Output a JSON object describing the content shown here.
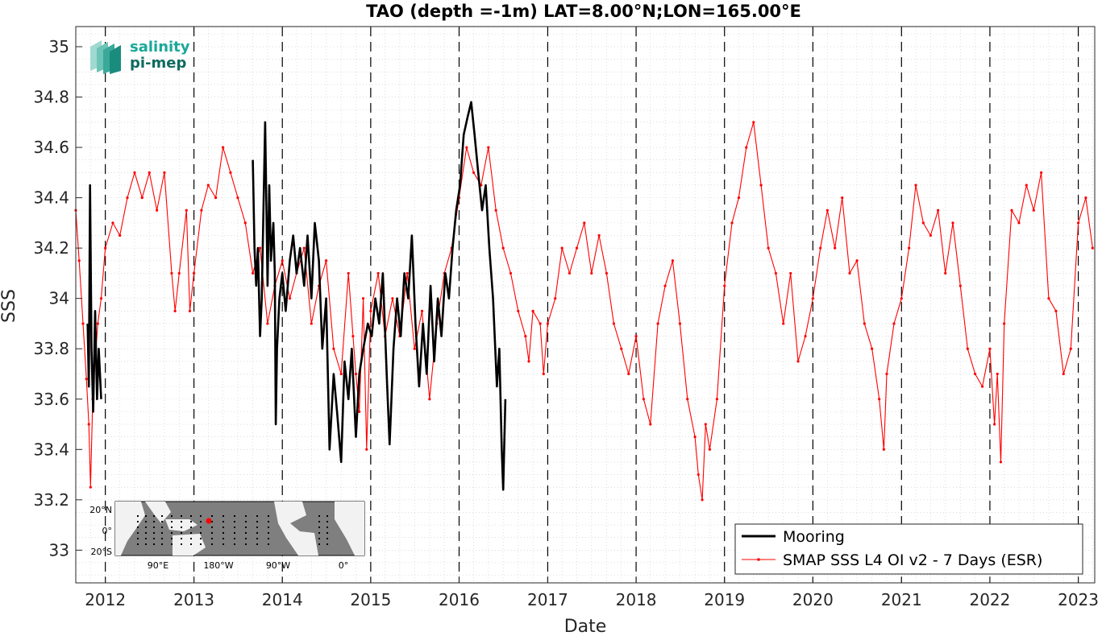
{
  "chart_data": {
    "type": "line",
    "title": "TAO (depth =-1m) LAT=8.00°N;LON=165.00°E",
    "xlabel": "Date",
    "ylabel": "SSS",
    "xlim": [
      "2011-09-01",
      "2023-03-10"
    ],
    "ylim": [
      32.87,
      35.08
    ],
    "y_ticks": [
      33,
      33.2,
      33.4,
      33.6,
      33.8,
      34,
      34.2,
      34.4,
      34.6,
      34.8,
      35
    ],
    "y_tick_labels": [
      "33",
      "33.2",
      "33.4",
      "33.6",
      "33.8",
      "34",
      "34.2",
      "34.4",
      "34.6",
      "34.8",
      "35"
    ],
    "x_tick_labels": [
      "2012",
      "2013",
      "2014",
      "2015",
      "2016",
      "2017",
      "2018",
      "2019",
      "2020",
      "2021",
      "2022",
      "2023"
    ],
    "grid": "minor-dotted",
    "year_boundaries": "dashed vertical lines at 1 January",
    "legend_position": "bottom-right",
    "series": [
      {
        "name": "Mooring",
        "color": "#000000",
        "style": "thick line",
        "points": [
          [
            "2011-10-20",
            33.9
          ],
          [
            "2011-10-25",
            33.65
          ],
          [
            "2011-10-30",
            34.45
          ],
          [
            "2011-11-05",
            33.8
          ],
          [
            "2011-11-12",
            33.55
          ],
          [
            "2011-11-20",
            33.95
          ],
          [
            "2011-11-28",
            33.6
          ],
          [
            "2011-12-05",
            33.8
          ],
          [
            "2011-12-15",
            33.6
          ],
          [
            "2013-09-01",
            34.55
          ],
          [
            "2013-09-08",
            34.2
          ],
          [
            "2013-09-15",
            34.05
          ],
          [
            "2013-09-22",
            34.2
          ],
          [
            "2013-10-01",
            33.85
          ],
          [
            "2013-10-08",
            34.0
          ],
          [
            "2013-10-15",
            34.35
          ],
          [
            "2013-10-22",
            34.7
          ],
          [
            "2013-11-01",
            34.05
          ],
          [
            "2013-11-08",
            34.45
          ],
          [
            "2013-11-15",
            34.15
          ],
          [
            "2013-11-25",
            34.3
          ],
          [
            "2013-12-01",
            34.1
          ],
          [
            "2013-12-05",
            33.5
          ],
          [
            "2013-12-10",
            33.8
          ],
          [
            "2013-12-20",
            34.0
          ],
          [
            "2014-01-01",
            34.1
          ],
          [
            "2014-01-15",
            33.95
          ],
          [
            "2014-02-01",
            34.15
          ],
          [
            "2014-02-15",
            34.25
          ],
          [
            "2014-03-01",
            34.1
          ],
          [
            "2014-03-15",
            34.2
          ],
          [
            "2014-04-01",
            34.05
          ],
          [
            "2014-04-15",
            34.25
          ],
          [
            "2014-05-01",
            34.0
          ],
          [
            "2014-05-15",
            34.3
          ],
          [
            "2014-06-01",
            34.15
          ],
          [
            "2014-06-15",
            33.8
          ],
          [
            "2014-07-01",
            34.0
          ],
          [
            "2014-07-15",
            33.4
          ],
          [
            "2014-08-01",
            33.7
          ],
          [
            "2014-08-15",
            33.55
          ],
          [
            "2014-09-01",
            33.35
          ],
          [
            "2014-09-15",
            33.75
          ],
          [
            "2014-10-01",
            33.6
          ],
          [
            "2014-10-15",
            33.8
          ],
          [
            "2014-11-01",
            33.45
          ],
          [
            "2014-11-15",
            33.7
          ],
          [
            "2014-12-01",
            33.8
          ],
          [
            "2014-12-20",
            33.9
          ],
          [
            "2015-01-05",
            33.85
          ],
          [
            "2015-01-20",
            34.0
          ],
          [
            "2015-02-05",
            33.9
          ],
          [
            "2015-02-20",
            34.1
          ],
          [
            "2015-03-10",
            33.65
          ],
          [
            "2015-03-20",
            33.42
          ],
          [
            "2015-04-05",
            33.8
          ],
          [
            "2015-04-20",
            34.0
          ],
          [
            "2015-05-05",
            33.85
          ],
          [
            "2015-05-20",
            34.1
          ],
          [
            "2015-06-05",
            34.0
          ],
          [
            "2015-06-20",
            34.25
          ],
          [
            "2015-07-05",
            33.9
          ],
          [
            "2015-07-20",
            33.65
          ],
          [
            "2015-08-05",
            33.9
          ],
          [
            "2015-08-20",
            33.7
          ],
          [
            "2015-09-05",
            34.05
          ],
          [
            "2015-09-20",
            33.75
          ],
          [
            "2015-10-05",
            34.0
          ],
          [
            "2015-10-20",
            33.85
          ],
          [
            "2015-11-05",
            34.1
          ],
          [
            "2015-11-20",
            34.0
          ],
          [
            "2015-12-05",
            34.2
          ],
          [
            "2015-12-20",
            34.35
          ],
          [
            "2016-01-05",
            34.45
          ],
          [
            "2016-01-20",
            34.65
          ],
          [
            "2016-02-05",
            34.72
          ],
          [
            "2016-02-20",
            34.78
          ],
          [
            "2016-03-05",
            34.65
          ],
          [
            "2016-03-20",
            34.5
          ],
          [
            "2016-04-05",
            34.35
          ],
          [
            "2016-04-20",
            34.45
          ],
          [
            "2016-05-05",
            34.2
          ],
          [
            "2016-05-20",
            34.0
          ],
          [
            "2016-06-05",
            33.65
          ],
          [
            "2016-06-15",
            33.8
          ],
          [
            "2016-06-25",
            33.4
          ],
          [
            "2016-07-01",
            33.24
          ],
          [
            "2016-07-10",
            33.6
          ]
        ]
      },
      {
        "name": "SMAP SSS L4 OI v2 - 7 Days (ESR)",
        "color": "#ff0000",
        "style": "thin line with point markers",
        "points": [
          [
            "2011-09-01",
            34.35
          ],
          [
            "2011-09-15",
            34.15
          ],
          [
            "2011-10-01",
            33.9
          ],
          [
            "2011-10-15",
            33.68
          ],
          [
            "2011-10-25",
            33.5
          ],
          [
            "2011-11-01",
            33.25
          ],
          [
            "2011-11-10",
            33.6
          ],
          [
            "2011-11-20",
            33.75
          ],
          [
            "2011-12-01",
            33.9
          ],
          [
            "2011-12-15",
            34.0
          ],
          [
            "2012-01-01",
            34.2
          ],
          [
            "2012-02-01",
            34.3
          ],
          [
            "2012-03-01",
            34.25
          ],
          [
            "2012-04-01",
            34.4
          ],
          [
            "2012-05-01",
            34.5
          ],
          [
            "2012-06-01",
            34.4
          ],
          [
            "2012-07-01",
            34.5
          ],
          [
            "2012-08-01",
            34.35
          ],
          [
            "2012-09-01",
            34.5
          ],
          [
            "2012-10-01",
            34.1
          ],
          [
            "2012-10-15",
            33.95
          ],
          [
            "2012-11-01",
            34.1
          ],
          [
            "2012-12-01",
            34.35
          ],
          [
            "2012-12-15",
            33.95
          ],
          [
            "2013-01-01",
            34.1
          ],
          [
            "2013-02-01",
            34.35
          ],
          [
            "2013-03-01",
            34.45
          ],
          [
            "2013-04-01",
            34.4
          ],
          [
            "2013-05-01",
            34.6
          ],
          [
            "2013-06-01",
            34.5
          ],
          [
            "2013-07-01",
            34.4
          ],
          [
            "2013-08-01",
            34.3
          ],
          [
            "2013-09-01",
            34.1
          ],
          [
            "2013-10-01",
            34.2
          ],
          [
            "2013-11-01",
            33.9
          ],
          [
            "2013-12-01",
            34.05
          ],
          [
            "2014-01-01",
            34.15
          ],
          [
            "2014-02-01",
            34.0
          ],
          [
            "2014-03-01",
            34.1
          ],
          [
            "2014-04-01",
            34.2
          ],
          [
            "2014-05-01",
            33.9
          ],
          [
            "2014-06-01",
            34.05
          ],
          [
            "2014-07-01",
            34.15
          ],
          [
            "2014-08-01",
            33.8
          ],
          [
            "2014-09-01",
            33.7
          ],
          [
            "2014-10-01",
            34.1
          ],
          [
            "2014-10-20",
            33.85
          ],
          [
            "2014-11-01",
            33.7
          ],
          [
            "2014-11-15",
            33.55
          ],
          [
            "2014-12-01",
            34.0
          ],
          [
            "2014-12-15",
            33.4
          ],
          [
            "2015-01-01",
            33.95
          ],
          [
            "2015-02-01",
            34.1
          ],
          [
            "2015-03-01",
            33.85
          ],
          [
            "2015-04-01",
            34.0
          ],
          [
            "2015-05-01",
            33.85
          ],
          [
            "2015-06-01",
            34.1
          ],
          [
            "2015-07-01",
            33.8
          ],
          [
            "2015-08-01",
            33.95
          ],
          [
            "2015-09-01",
            33.6
          ],
          [
            "2015-10-01",
            33.9
          ],
          [
            "2015-11-01",
            34.1
          ],
          [
            "2015-12-01",
            34.2
          ],
          [
            "2016-01-01",
            34.4
          ],
          [
            "2016-02-01",
            34.6
          ],
          [
            "2016-03-01",
            34.5
          ],
          [
            "2016-04-01",
            34.45
          ],
          [
            "2016-05-01",
            34.6
          ],
          [
            "2016-06-01",
            34.35
          ],
          [
            "2016-07-01",
            34.2
          ],
          [
            "2016-08-01",
            34.1
          ],
          [
            "2016-09-01",
            33.95
          ],
          [
            "2016-10-01",
            33.85
          ],
          [
            "2016-10-15",
            33.75
          ],
          [
            "2016-11-01",
            33.95
          ],
          [
            "2016-12-01",
            33.9
          ],
          [
            "2016-12-15",
            33.7
          ],
          [
            "2017-01-01",
            33.9
          ],
          [
            "2017-02-01",
            34.0
          ],
          [
            "2017-03-01",
            34.2
          ],
          [
            "2017-04-01",
            34.1
          ],
          [
            "2017-05-01",
            34.2
          ],
          [
            "2017-06-01",
            34.3
          ],
          [
            "2017-07-01",
            34.1
          ],
          [
            "2017-08-01",
            34.25
          ],
          [
            "2017-09-01",
            34.1
          ],
          [
            "2017-10-01",
            33.9
          ],
          [
            "2017-11-01",
            33.8
          ],
          [
            "2017-12-01",
            33.7
          ],
          [
            "2018-01-01",
            33.85
          ],
          [
            "2018-02-01",
            33.6
          ],
          [
            "2018-03-01",
            33.5
          ],
          [
            "2018-04-01",
            33.9
          ],
          [
            "2018-05-01",
            34.05
          ],
          [
            "2018-06-01",
            34.15
          ],
          [
            "2018-07-01",
            33.9
          ],
          [
            "2018-08-01",
            33.6
          ],
          [
            "2018-09-01",
            33.45
          ],
          [
            "2018-09-15",
            33.3
          ],
          [
            "2018-10-01",
            33.2
          ],
          [
            "2018-10-15",
            33.5
          ],
          [
            "2018-11-01",
            33.4
          ],
          [
            "2018-12-01",
            33.6
          ],
          [
            "2019-01-01",
            34.05
          ],
          [
            "2019-02-01",
            34.3
          ],
          [
            "2019-03-01",
            34.4
          ],
          [
            "2019-04-01",
            34.6
          ],
          [
            "2019-05-01",
            34.7
          ],
          [
            "2019-06-01",
            34.45
          ],
          [
            "2019-07-01",
            34.2
          ],
          [
            "2019-08-01",
            34.1
          ],
          [
            "2019-09-01",
            33.9
          ],
          [
            "2019-10-01",
            34.1
          ],
          [
            "2019-11-01",
            33.75
          ],
          [
            "2019-12-01",
            33.85
          ],
          [
            "2020-01-01",
            34.0
          ],
          [
            "2020-02-01",
            34.2
          ],
          [
            "2020-03-01",
            34.35
          ],
          [
            "2020-04-01",
            34.2
          ],
          [
            "2020-05-01",
            34.4
          ],
          [
            "2020-06-01",
            34.1
          ],
          [
            "2020-07-01",
            34.15
          ],
          [
            "2020-08-01",
            33.9
          ],
          [
            "2020-09-01",
            33.8
          ],
          [
            "2020-10-01",
            33.6
          ],
          [
            "2020-10-20",
            33.4
          ],
          [
            "2020-11-01",
            33.7
          ],
          [
            "2020-12-01",
            33.9
          ],
          [
            "2021-01-01",
            34.0
          ],
          [
            "2021-02-01",
            34.2
          ],
          [
            "2021-03-01",
            34.45
          ],
          [
            "2021-04-01",
            34.3
          ],
          [
            "2021-05-01",
            34.25
          ],
          [
            "2021-06-01",
            34.35
          ],
          [
            "2021-07-01",
            34.1
          ],
          [
            "2021-08-01",
            34.3
          ],
          [
            "2021-09-01",
            34.05
          ],
          [
            "2021-10-01",
            33.8
          ],
          [
            "2021-11-01",
            33.7
          ],
          [
            "2021-12-01",
            33.65
          ],
          [
            "2022-01-01",
            33.8
          ],
          [
            "2022-01-20",
            33.5
          ],
          [
            "2022-02-01",
            33.7
          ],
          [
            "2022-02-15",
            33.35
          ],
          [
            "2022-03-01",
            33.9
          ],
          [
            "2022-04-01",
            34.35
          ],
          [
            "2022-05-01",
            34.3
          ],
          [
            "2022-06-01",
            34.45
          ],
          [
            "2022-07-01",
            34.35
          ],
          [
            "2022-08-01",
            34.5
          ],
          [
            "2022-09-01",
            34.0
          ],
          [
            "2022-10-01",
            33.95
          ],
          [
            "2022-11-01",
            33.7
          ],
          [
            "2022-12-01",
            33.8
          ],
          [
            "2023-01-01",
            34.3
          ],
          [
            "2023-02-01",
            34.4
          ],
          [
            "2023-03-01",
            34.2
          ]
        ]
      }
    ]
  },
  "logo": {
    "line1": "salinity",
    "line2": "pi-mep",
    "color1": "#1aa89a",
    "color2": "#0f6b5f"
  },
  "inset_map": {
    "lat_labels": [
      "20°N",
      "0°",
      "20°S"
    ],
    "lon_labels": [
      "90°E",
      "180°W",
      "90°W",
      "0°"
    ],
    "ocean_color": "#7f7f7f",
    "land_color": "#f2f2f2",
    "marker_color": "#ff0000"
  }
}
